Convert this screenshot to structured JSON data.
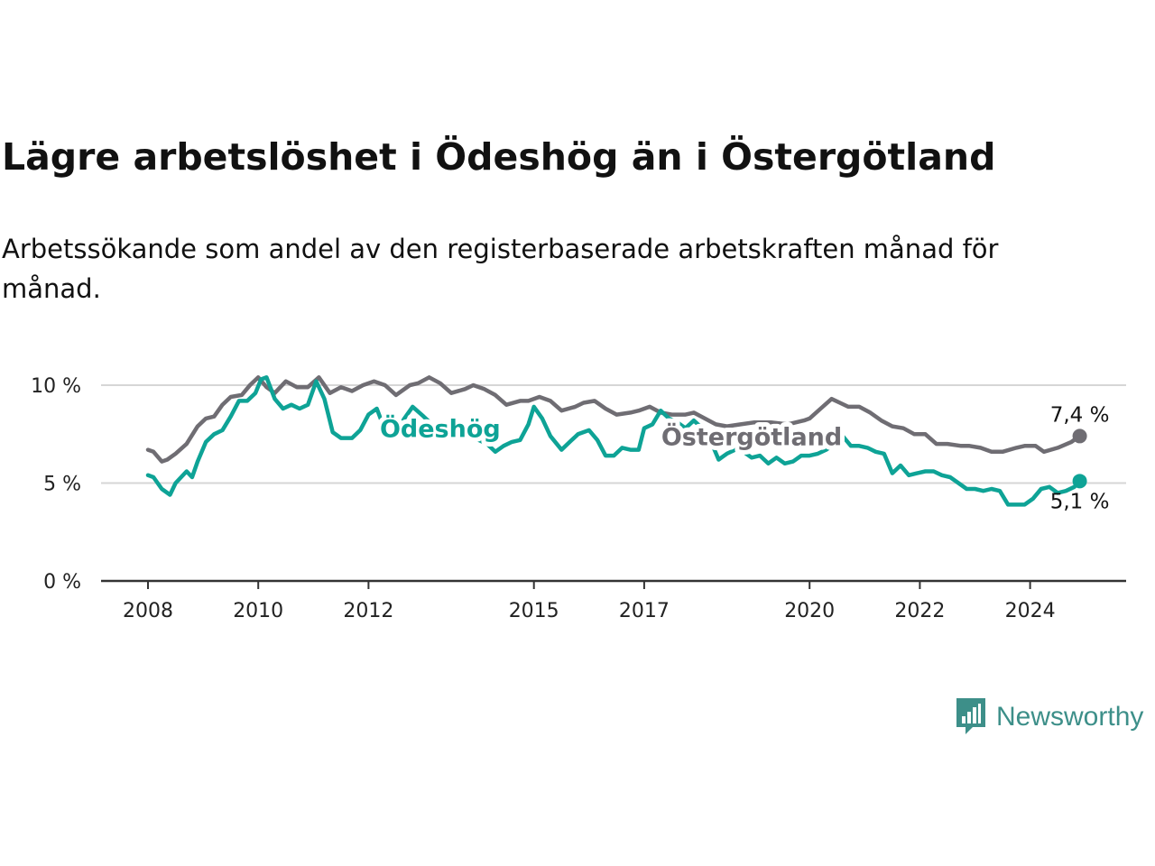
{
  "title": "Lägre arbetslöshet i Ödeshög än i Östergötland",
  "subtitle": "Arbetssökande som andel av den registerbaserade arbetskraften månad för månad.",
  "brand": "Newsworthy",
  "colors": {
    "odeshog": "#0ea396",
    "ostergotland": "#6f6d73",
    "grid": "#d6d6d6",
    "axis": "#333333",
    "brand": "#3d8f89"
  },
  "icons": {
    "logo": "newsworthy-logo-icon"
  },
  "chart_data": {
    "type": "line",
    "title": "Lägre arbetslöshet i Ödeshög än i Östergötland",
    "xlabel": "",
    "ylabel": "",
    "ylim": [
      0,
      10
    ],
    "yticks": [
      0,
      5,
      10
    ],
    "ytick_labels": [
      "0 %",
      "5 %",
      "10 %"
    ],
    "xticks": [
      2008,
      2010,
      2012,
      2015,
      2017,
      2020,
      2022,
      2024
    ],
    "xlim": [
      2007.75,
      2025.35
    ],
    "grid": true,
    "end_labels": {
      "ostergotland": "7,4 %",
      "odeshog": "5,1 %"
    },
    "series": [
      {
        "name": "Östergötland",
        "x": [
          2008.0,
          2008.1,
          2008.25,
          2008.35,
          2008.5,
          2008.7,
          2008.9,
          2009.05,
          2009.2,
          2009.35,
          2009.5,
          2009.7,
          2009.85,
          2010.0,
          2010.15,
          2010.3,
          2010.5,
          2010.7,
          2010.9,
          2011.1,
          2011.3,
          2011.5,
          2011.7,
          2011.9,
          2012.1,
          2012.3,
          2012.5,
          2012.75,
          2012.9,
          2013.1,
          2013.3,
          2013.5,
          2013.75,
          2013.9,
          2014.1,
          2014.3,
          2014.5,
          2014.75,
          2014.9,
          2015.1,
          2015.3,
          2015.5,
          2015.75,
          2015.9,
          2016.1,
          2016.3,
          2016.5,
          2016.75,
          2016.9,
          2017.1,
          2017.3,
          2017.5,
          2017.75,
          2017.9,
          2018.1,
          2018.3,
          2018.5,
          2018.75,
          2019.0,
          2019.3,
          2019.6,
          2019.9,
          2020.0,
          2020.2,
          2020.4,
          2020.55,
          2020.7,
          2020.9,
          2021.1,
          2021.3,
          2021.5,
          2021.7,
          2021.9,
          2022.1,
          2022.3,
          2022.5,
          2022.75,
          2022.9,
          2023.1,
          2023.3,
          2023.5,
          2023.75,
          2023.9,
          2024.1,
          2024.25,
          2024.5,
          2024.75,
          2024.9
        ],
        "values": [
          6.7,
          6.6,
          6.1,
          6.2,
          6.5,
          7.0,
          7.9,
          8.3,
          8.4,
          9.0,
          9.4,
          9.5,
          10.0,
          10.4,
          9.9,
          9.6,
          10.2,
          9.9,
          9.9,
          10.4,
          9.6,
          9.9,
          9.7,
          10.0,
          10.2,
          10.0,
          9.5,
          10.0,
          10.1,
          10.4,
          10.1,
          9.6,
          9.8,
          10.0,
          9.8,
          9.5,
          9.0,
          9.2,
          9.2,
          9.4,
          9.2,
          8.7,
          8.9,
          9.1,
          9.2,
          8.8,
          8.5,
          8.6,
          8.7,
          8.9,
          8.6,
          8.5,
          8.5,
          8.6,
          8.3,
          8.0,
          7.9,
          8.0,
          8.1,
          8.1,
          8.0,
          8.2,
          8.3,
          8.8,
          9.3,
          9.1,
          8.9,
          8.9,
          8.6,
          8.2,
          7.9,
          7.8,
          7.5,
          7.5,
          7.0,
          7.0,
          6.9,
          6.9,
          6.8,
          6.6,
          6.6,
          6.8,
          6.9,
          6.9,
          6.6,
          6.8,
          7.1,
          7.4
        ]
      },
      {
        "name": "Ödeshög",
        "x": [
          2008.0,
          2008.1,
          2008.25,
          2008.4,
          2008.5,
          2008.7,
          2008.8,
          2008.9,
          2009.05,
          2009.2,
          2009.35,
          2009.5,
          2009.65,
          2009.8,
          2009.95,
          2010.05,
          2010.15,
          2010.3,
          2010.45,
          2010.6,
          2010.75,
          2010.9,
          2011.05,
          2011.2,
          2011.35,
          2011.5,
          2011.7,
          2011.85,
          2012.0,
          2012.15,
          2012.3,
          2012.5,
          2012.65,
          2012.8,
          2013.0,
          2013.15,
          2013.3,
          2013.5,
          2013.65,
          2013.85,
          2014.0,
          2014.15,
          2014.3,
          2014.45,
          2014.6,
          2014.75,
          2014.9,
          2015.0,
          2015.15,
          2015.3,
          2015.5,
          2015.65,
          2015.8,
          2016.0,
          2016.15,
          2016.3,
          2016.45,
          2016.6,
          2016.75,
          2016.9,
          2017.0,
          2017.15,
          2017.3,
          2017.45,
          2017.6,
          2017.75,
          2017.9,
          2018.05,
          2018.2,
          2018.35,
          2018.5,
          2018.65,
          2018.8,
          2018.95,
          2019.1,
          2019.25,
          2019.4,
          2019.55,
          2019.7,
          2019.85,
          2020.0,
          2020.15,
          2020.3,
          2020.45,
          2020.6,
          2020.75,
          2020.9,
          2021.05,
          2021.2,
          2021.35,
          2021.5,
          2021.65,
          2021.8,
          2021.95,
          2022.1,
          2022.25,
          2022.4,
          2022.55,
          2022.7,
          2022.85,
          2023.0,
          2023.15,
          2023.3,
          2023.45,
          2023.6,
          2023.75,
          2023.9,
          2024.05,
          2024.2,
          2024.35,
          2024.5,
          2024.65,
          2024.8,
          2024.9
        ],
        "values": [
          5.4,
          5.3,
          4.7,
          4.4,
          5.0,
          5.6,
          5.3,
          6.1,
          7.1,
          7.5,
          7.7,
          8.4,
          9.2,
          9.2,
          9.6,
          10.3,
          10.4,
          9.3,
          8.8,
          9.0,
          8.8,
          9.0,
          10.2,
          9.3,
          7.6,
          7.3,
          7.3,
          7.7,
          8.5,
          8.8,
          7.7,
          7.6,
          8.3,
          8.9,
          8.4,
          8.0,
          7.8,
          7.5,
          7.3,
          7.4,
          7.2,
          7.0,
          6.6,
          6.9,
          7.1,
          7.2,
          8.0,
          8.9,
          8.3,
          7.4,
          6.7,
          7.1,
          7.5,
          7.7,
          7.2,
          6.4,
          6.4,
          6.8,
          6.7,
          6.7,
          7.8,
          8.0,
          8.7,
          8.3,
          8.1,
          7.8,
          8.2,
          7.8,
          7.2,
          6.2,
          6.5,
          6.7,
          6.6,
          6.3,
          6.4,
          6.0,
          6.3,
          6.0,
          6.1,
          6.4,
          6.4,
          6.5,
          6.7,
          7.0,
          7.4,
          6.9,
          6.9,
          6.8,
          6.6,
          6.5,
          5.5,
          5.9,
          5.4,
          5.5,
          5.6,
          5.6,
          5.4,
          5.3,
          5.0,
          4.7,
          4.7,
          4.6,
          4.7,
          4.6,
          3.9,
          3.9,
          3.9,
          4.2,
          4.7,
          4.8,
          4.5,
          4.6,
          4.8,
          5.1
        ]
      }
    ]
  }
}
